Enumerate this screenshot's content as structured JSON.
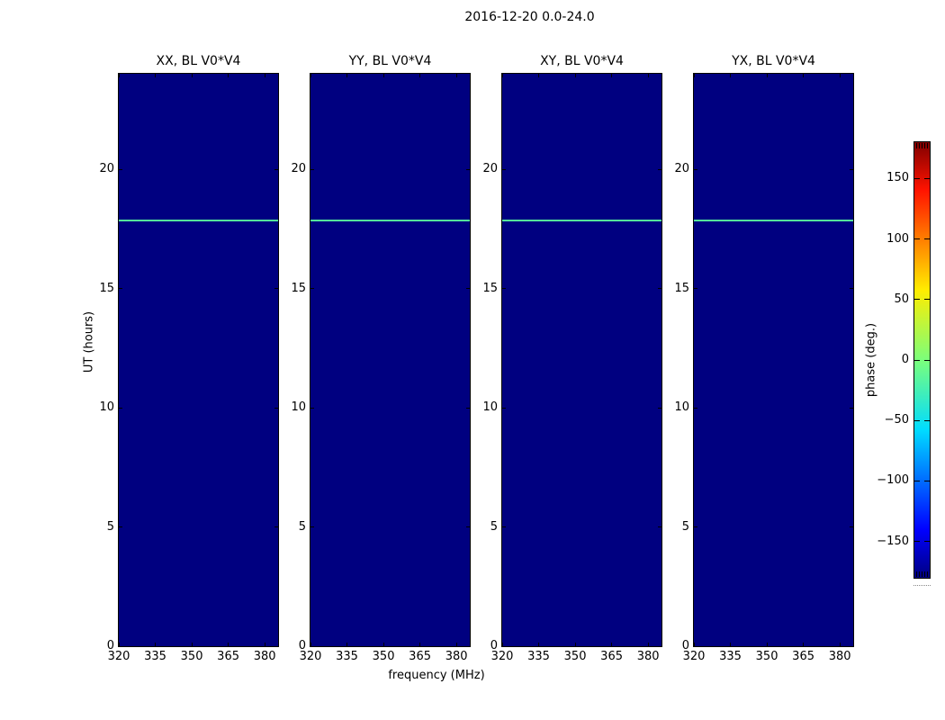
{
  "figure": {
    "title": "2016-12-20 0.0-24.0",
    "xlabel": "frequency (MHz)",
    "ylabel": "UT (hours)"
  },
  "chart_data": {
    "type": "heatmap",
    "title": "2016-12-20 0.0-24.0",
    "xlabel": "frequency (MHz)",
    "ylabel": "UT (hours)",
    "panels": [
      {
        "title": "XX, BL V0*V4"
      },
      {
        "title": "YY, BL V0*V4"
      },
      {
        "title": "XY, BL V0*V4"
      },
      {
        "title": "YX, BL V0*V4"
      }
    ],
    "x_ticks": [
      320,
      335,
      350,
      365,
      380
    ],
    "x_tick_labels": [
      "320",
      "335",
      "350",
      "365",
      "380"
    ],
    "x_range": [
      320,
      385.5
    ],
    "y_ticks": [
      0,
      5,
      10,
      15,
      20
    ],
    "y_tick_labels": [
      "0",
      "5",
      "10",
      "15",
      "20"
    ],
    "y_range": [
      0,
      24
    ],
    "background_phase_deg": -180,
    "heatmap_background_color": "#000080",
    "feature_line": {
      "ut_hours": 17.9,
      "color": "#54e89b",
      "description": "narrow bright horizontal stripe at same UT in all four panels"
    },
    "colorbar": {
      "label": "phase (deg.)",
      "tick_values": [
        150,
        100,
        50,
        0,
        -50,
        -100,
        -150
      ],
      "tick_labels": [
        "150",
        "100",
        "50",
        "0",
        "−50",
        "−100",
        "−150"
      ],
      "range": [
        -180,
        180
      ],
      "colormap": "jet",
      "gradient_stops": [
        {
          "pos": 0.0,
          "color": "#000080"
        },
        {
          "pos": 0.11,
          "color": "#0000ff"
        },
        {
          "pos": 0.34,
          "color": "#00dcff"
        },
        {
          "pos": 0.5,
          "color": "#7bff7b"
        },
        {
          "pos": 0.66,
          "color": "#ffed00"
        },
        {
          "pos": 0.89,
          "color": "#ff1300"
        },
        {
          "pos": 1.0,
          "color": "#800000"
        }
      ]
    }
  }
}
